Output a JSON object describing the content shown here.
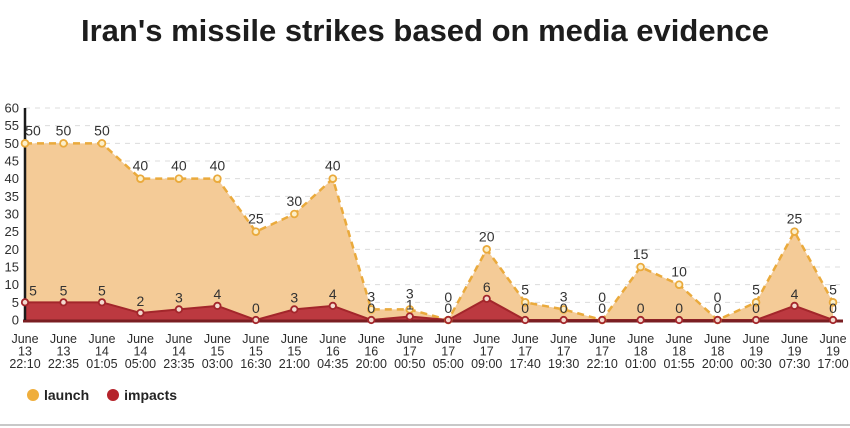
{
  "title": "Iran's missile strikes based on media evidence",
  "legend": {
    "launch": {
      "label": "launch",
      "color": "#EFAE3C"
    },
    "impacts": {
      "label": "impacts",
      "color": "#B5232B"
    }
  },
  "chart_data": {
    "type": "area",
    "title": "Iran's missile strikes based on media evidence",
    "xlabel": "",
    "ylabel": "",
    "ylim": [
      0,
      60
    ],
    "y_tick_step": 5,
    "y_ticks": [
      0,
      5,
      10,
      15,
      20,
      25,
      30,
      35,
      40,
      45,
      50,
      55,
      60
    ],
    "grid": "horizontal-dashed",
    "legend_position": "bottom-left",
    "categories": [
      [
        "June",
        "13",
        "22:10"
      ],
      [
        "June",
        "13",
        "22:35"
      ],
      [
        "June",
        "14",
        "01:05"
      ],
      [
        "June",
        "14",
        "05:00"
      ],
      [
        "June",
        "14",
        "23:35"
      ],
      [
        "June",
        "15",
        "03:00"
      ],
      [
        "June",
        "15",
        "16:30"
      ],
      [
        "June",
        "15",
        "21:00"
      ],
      [
        "June",
        "16",
        "04:35"
      ],
      [
        "June",
        "16",
        "20:00"
      ],
      [
        "June",
        "17",
        "00:50"
      ],
      [
        "June",
        "17",
        "05:00"
      ],
      [
        "June",
        "17",
        "09:00"
      ],
      [
        "June",
        "17",
        "17:40"
      ],
      [
        "June",
        "17",
        "19:30"
      ],
      [
        "June",
        "17",
        "22:10"
      ],
      [
        "June",
        "18",
        "01:00"
      ],
      [
        "June",
        "18",
        "01:55"
      ],
      [
        "June",
        "18",
        "20:00"
      ],
      [
        "June",
        "19",
        "00:30"
      ],
      [
        "June",
        "19",
        "07:30"
      ],
      [
        "June",
        "19",
        "17:00"
      ]
    ],
    "series": [
      {
        "name": "launch",
        "values": [
          50,
          50,
          50,
          40,
          40,
          40,
          25,
          30,
          40,
          3,
          3,
          0,
          20,
          5,
          3,
          0,
          15,
          10,
          0,
          5,
          25,
          5
        ],
        "line_color": "#EAAA3C",
        "fill_color": "#F4CB97",
        "marker_fill": "#FCEFC9",
        "line_style": "dashed"
      },
      {
        "name": "impacts",
        "values": [
          5,
          5,
          5,
          2,
          3,
          4,
          0,
          3,
          4,
          0,
          1,
          0,
          6,
          0,
          0,
          0,
          0,
          0,
          0,
          0,
          4,
          0
        ],
        "line_color": "#A3262B",
        "fill_color": "#BC3940",
        "marker_fill": "#F3DACF",
        "line_style": "solid"
      }
    ],
    "axis_colors": {
      "y_axis": "#1a1a1a",
      "x_axis": "#7A1E22"
    }
  }
}
